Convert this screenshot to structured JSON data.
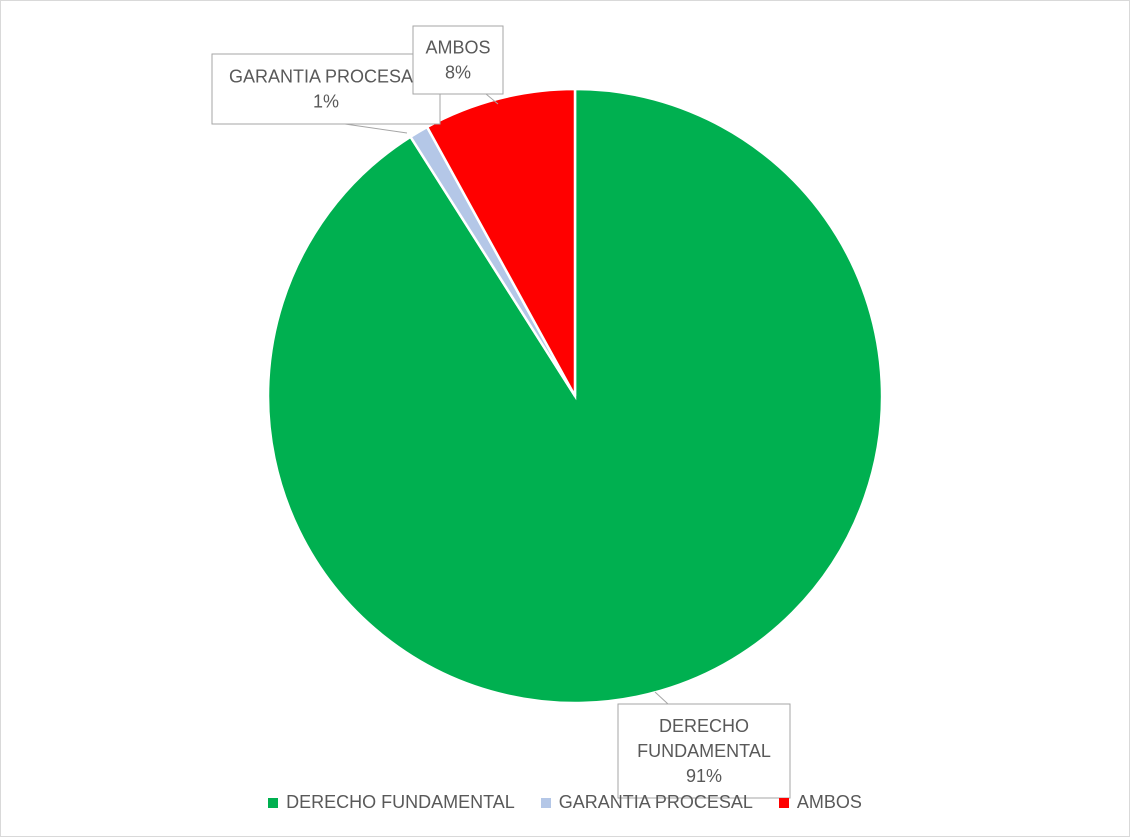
{
  "chart_data": {
    "type": "pie",
    "title": "",
    "slices": [
      {
        "label": "DERECHO FUNDAMENTAL",
        "value": 91,
        "display": "91%",
        "color": "#00b050"
      },
      {
        "label": "GARANTIA PROCESAL",
        "value": 1,
        "display": "1%",
        "color": "#b4c7e7"
      },
      {
        "label": "AMBOS",
        "value": 8,
        "display": "8%",
        "color": "#ff0000"
      }
    ],
    "legend_position": "bottom",
    "data_labels": "callouts with category name and percentage"
  }
}
